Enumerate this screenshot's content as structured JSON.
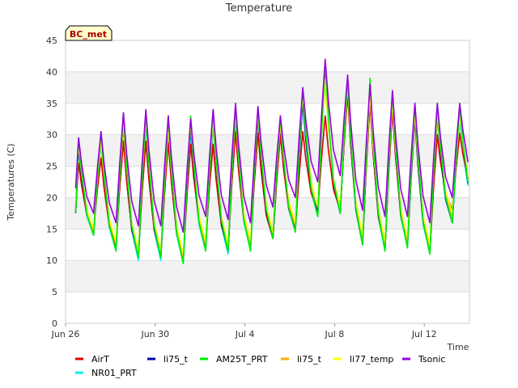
{
  "chart_data": {
    "type": "line",
    "title": "Temperature",
    "xlabel": "Time",
    "ylabel": "Temperatures (C)",
    "badge": "BC_met",
    "ylim": [
      0,
      45
    ],
    "yticks": [
      0,
      5,
      10,
      15,
      20,
      25,
      30,
      35,
      40,
      45
    ],
    "xlim": [
      "Jun 26",
      "Jul 15"
    ],
    "xticks": [
      "Jun 26",
      "Jun 30",
      "Jul 4",
      "Jul 8",
      "Jul 12"
    ],
    "grid": "horizontal bands",
    "legend_position": "bottom",
    "x_days": [
      "Jun 26",
      "Jun 27",
      "Jun 28",
      "Jun 29",
      "Jun 30",
      "Jul 1",
      "Jul 2",
      "Jul 3",
      "Jul 4",
      "Jul 5",
      "Jul 6",
      "Jul 7",
      "Jul 8",
      "Jul 9",
      "Jul 10",
      "Jul 11",
      "Jul 12",
      "Jul 13"
    ],
    "series": [
      {
        "name": "AirT",
        "color": "#dd0000",
        "daily_max": [
          25.5,
          26.3,
          29.0,
          29.0,
          28.8,
          28.5,
          28.5,
          30.5,
          30.3,
          30.0,
          30.5,
          33.0,
          36.5,
          35.0,
          34.0,
          32.5,
          30.0,
          30.2
        ],
        "daily_min": [
          14.5,
          15.0,
          12.5,
          11.0,
          11.0,
          10.5,
          13.0,
          12.0,
          12.5,
          13.5,
          15.0,
          18.0,
          18.0,
          13.0,
          12.0,
          12.5,
          11.5,
          18.0
        ]
      },
      {
        "name": "li75_t",
        "color": "#0000aa",
        "daily_max": [
          28.0,
          29.5,
          32.0,
          32.5,
          31.5,
          31.5,
          32.5,
          33.5,
          33.0,
          32.0,
          35.5,
          40.0,
          38.0,
          36.5,
          35.5,
          33.0,
          33.5,
          34.0
        ],
        "daily_min": [
          14.0,
          14.5,
          12.0,
          10.5,
          10.5,
          10.0,
          12.0,
          11.5,
          12.0,
          13.5,
          15.0,
          17.5,
          17.5,
          12.5,
          12.0,
          12.5,
          11.5,
          16.0
        ]
      },
      {
        "name": "AM25T_PRT",
        "color": "#00ee00",
        "daily_max": [
          29.5,
          30.5,
          33.5,
          33.5,
          33.0,
          33.0,
          34.0,
          34.5,
          34.5,
          33.0,
          37.5,
          41.5,
          39.0,
          39.0,
          37.0,
          35.0,
          35.0,
          34.5
        ],
        "daily_min": [
          14.0,
          14.0,
          11.5,
          10.5,
          10.5,
          9.5,
          11.5,
          11.5,
          11.5,
          13.5,
          14.5,
          17.0,
          17.5,
          12.5,
          11.5,
          12.0,
          11.0,
          16.0
        ]
      },
      {
        "name": "li75_t",
        "color": "#ffaa00",
        "daily_max": [
          29.0,
          30.0,
          32.5,
          33.0,
          32.0,
          32.5,
          33.0,
          34.0,
          34.0,
          32.5,
          37.0,
          39.0,
          38.5,
          37.0,
          36.0,
          34.0,
          34.0,
          33.5
        ],
        "daily_min": [
          14.5,
          14.5,
          12.5,
          11.0,
          11.0,
          10.5,
          12.5,
          12.0,
          12.0,
          14.0,
          15.5,
          18.5,
          18.0,
          13.5,
          12.5,
          13.0,
          12.0,
          17.0
        ]
      },
      {
        "name": "li77_temp",
        "color": "#ffff00",
        "daily_max": [
          28.5,
          29.0,
          32.0,
          32.5,
          31.5,
          32.0,
          32.5,
          33.5,
          33.5,
          32.0,
          36.5,
          38.5,
          38.0,
          36.5,
          35.5,
          33.5,
          33.5,
          33.0
        ],
        "daily_min": [
          15.5,
          15.0,
          13.0,
          11.5,
          11.5,
          11.0,
          13.0,
          12.5,
          13.0,
          14.5,
          16.0,
          18.5,
          18.5,
          14.0,
          13.0,
          13.5,
          12.5,
          17.5
        ]
      },
      {
        "name": "Tsonic",
        "color": "#9900dd",
        "daily_max": [
          29.5,
          30.5,
          33.5,
          34.0,
          33.0,
          32.5,
          34.0,
          35.0,
          34.5,
          33.0,
          37.5,
          42.0,
          39.5,
          38.0,
          37.0,
          35.0,
          35.0,
          35.0
        ],
        "daily_min": [
          18.0,
          17.5,
          16.0,
          15.5,
          15.5,
          14.5,
          17.0,
          16.5,
          16.0,
          18.5,
          20.0,
          22.5,
          23.5,
          18.0,
          17.0,
          17.0,
          16.0,
          20.0
        ]
      },
      {
        "name": "NR01_PRT",
        "color": "#00eeee",
        "daily_max": [
          27.5,
          28.5,
          31.5,
          31.5,
          30.5,
          30.5,
          31.5,
          32.5,
          32.5,
          31.0,
          35.0,
          38.5,
          37.0,
          35.5,
          34.5,
          32.5,
          32.5,
          32.0
        ],
        "daily_min": [
          14.0,
          14.0,
          11.5,
          10.0,
          10.0,
          9.5,
          11.5,
          11.0,
          11.5,
          13.5,
          14.5,
          17.0,
          17.5,
          12.5,
          11.5,
          12.0,
          11.0,
          16.0
        ]
      }
    ]
  }
}
